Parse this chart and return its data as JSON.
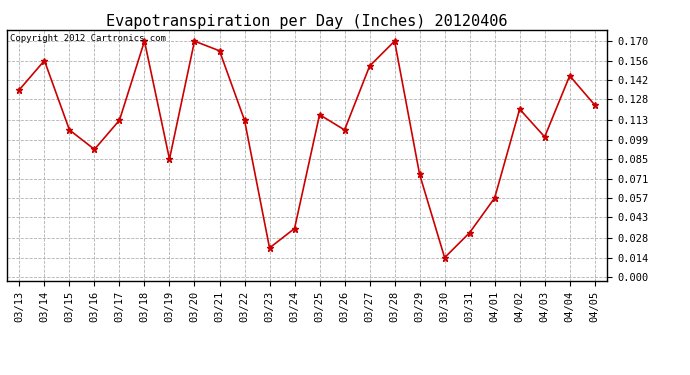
{
  "title": "Evapotranspiration per Day (Inches) 20120406",
  "copyright_text": "Copyright 2012 Cartronics.com",
  "dates": [
    "03/13",
    "03/14",
    "03/15",
    "03/16",
    "03/17",
    "03/18",
    "03/19",
    "03/20",
    "03/21",
    "03/22",
    "03/23",
    "03/24",
    "03/25",
    "03/26",
    "03/27",
    "03/28",
    "03/29",
    "03/30",
    "03/31",
    "04/01",
    "04/02",
    "04/03",
    "04/04",
    "04/05"
  ],
  "values": [
    0.135,
    0.156,
    0.106,
    0.092,
    0.113,
    0.17,
    0.085,
    0.17,
    0.163,
    0.113,
    0.021,
    0.035,
    0.117,
    0.106,
    0.152,
    0.17,
    0.074,
    0.014,
    0.032,
    0.057,
    0.121,
    0.101,
    0.145,
    0.124
  ],
  "line_color": "#cc0000",
  "marker": "*",
  "marker_size": 5,
  "background_color": "#ffffff",
  "plot_bg_color": "#ffffff",
  "grid_color": "#aaaaaa",
  "yticks": [
    0.0,
    0.014,
    0.028,
    0.043,
    0.057,
    0.071,
    0.085,
    0.099,
    0.113,
    0.128,
    0.142,
    0.156,
    0.17
  ],
  "ylim": [
    -0.003,
    0.178
  ],
  "title_fontsize": 11,
  "copyright_fontsize": 6.5,
  "tick_fontsize": 7.5
}
